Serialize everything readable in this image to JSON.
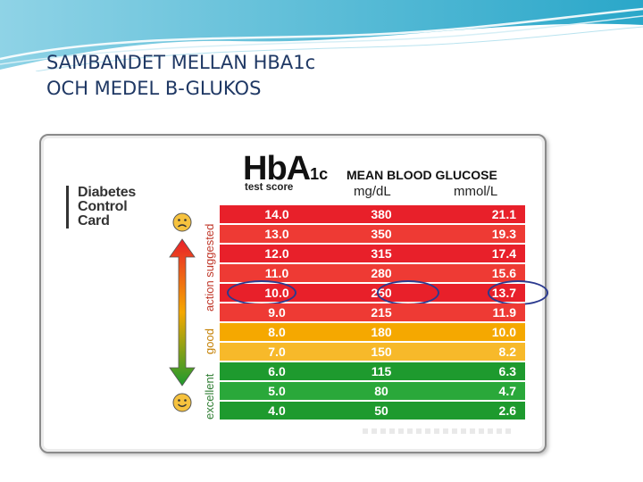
{
  "slide": {
    "title_line1": "SAMBANDET MELLAN HBA1c",
    "title_line2": "OCH MEDEL B-GLUKOS"
  },
  "card": {
    "label_line1": "Diabetes",
    "label_line2": "Control",
    "label_line3": "Card",
    "hba1c_main": "HbA",
    "hba1c_sub": "1c",
    "test_score": "test score",
    "mbg_title": "MEAN BLOOD GLUCOSE",
    "unit_mg": "mg/dL",
    "unit_mmol": "mmol/L",
    "band_action": "action suggested",
    "band_good": "good",
    "band_excellent": "excellent"
  },
  "table": {
    "rows": [
      {
        "hba1c": "14.0",
        "mg": "380",
        "mmol": "21.1",
        "band": "action"
      },
      {
        "hba1c": "13.0",
        "mg": "350",
        "mmol": "19.3",
        "band": "action"
      },
      {
        "hba1c": "12.0",
        "mg": "315",
        "mmol": "17.4",
        "band": "action"
      },
      {
        "hba1c": "11.0",
        "mg": "280",
        "mmol": "15.6",
        "band": "action"
      },
      {
        "hba1c": "10.0",
        "mg": "250",
        "mmol": "13.7",
        "band": "action",
        "highlighted": true
      },
      {
        "hba1c": "9.0",
        "mg": "215",
        "mmol": "11.9",
        "band": "action"
      },
      {
        "hba1c": "8.0",
        "mg": "180",
        "mmol": "10.0",
        "band": "good"
      },
      {
        "hba1c": "7.0",
        "mg": "150",
        "mmol": "8.2",
        "band": "good"
      },
      {
        "hba1c": "6.0",
        "mg": "115",
        "mmol": "6.3",
        "band": "excellent"
      },
      {
        "hba1c": "5.0",
        "mg": "80",
        "mmol": "4.7",
        "band": "excellent"
      },
      {
        "hba1c": "4.0",
        "mg": "50",
        "mmol": "2.6",
        "band": "excellent"
      }
    ]
  },
  "colors": {
    "action_a": "#e8202a",
    "action_b": "#ee3a34",
    "good_a": "#f5a800",
    "good_b": "#f7b92a",
    "excellent_a": "#1e9a2e",
    "excellent_b": "#2aa83a",
    "highlight_circle": "#2b3a8f",
    "title": "#1f3864"
  },
  "icons": {
    "sad": "sad-face-icon",
    "smile": "smiling-face-icon",
    "arrow": "double-arrow-icon"
  }
}
